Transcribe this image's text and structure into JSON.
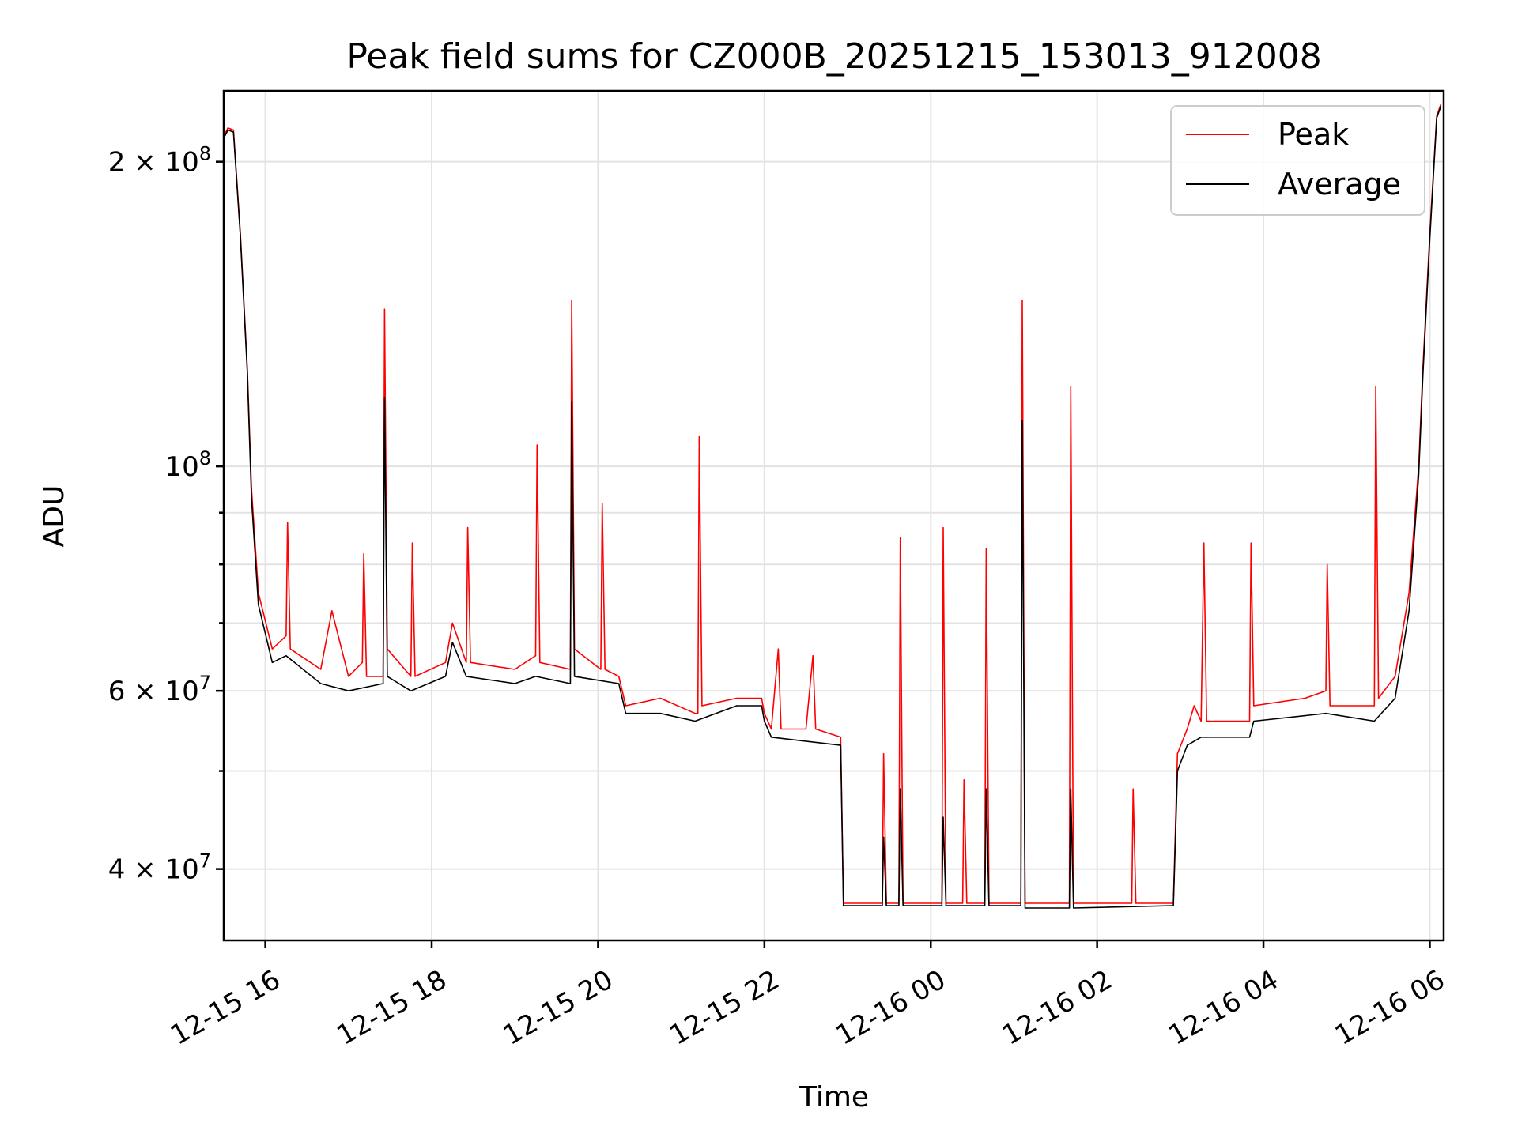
{
  "chart_data": {
    "type": "line",
    "title": "Peak field sums for CZ000B_20251215_153013_912008",
    "xlabel": "Time",
    "ylabel": "ADU",
    "yscale": "log",
    "ylim": [
      34000000,
      235000000
    ],
    "xlim": [
      "2025-12-15 15:30",
      "2025-12-16 06:10"
    ],
    "grid": true,
    "legend_position": "top-right",
    "x_ticks": [
      {
        "t": "2025-12-15 16:00",
        "label": "12-15 16"
      },
      {
        "t": "2025-12-15 18:00",
        "label": "12-15 18"
      },
      {
        "t": "2025-12-15 20:00",
        "label": "12-15 20"
      },
      {
        "t": "2025-12-15 22:00",
        "label": "12-15 22"
      },
      {
        "t": "2025-12-16 00:00",
        "label": "12-16 00"
      },
      {
        "t": "2025-12-16 02:00",
        "label": "12-16 02"
      },
      {
        "t": "2025-12-16 04:00",
        "label": "12-16 04"
      },
      {
        "t": "2025-12-16 06:00",
        "label": "12-16 06"
      }
    ],
    "y_ticks": [
      {
        "v": 40000000,
        "mant": "4",
        "exp": "7"
      },
      {
        "v": 60000000,
        "mant": "6",
        "exp": "7"
      },
      {
        "v": 100000000,
        "mant": "",
        "exp": "8"
      },
      {
        "v": 200000000,
        "mant": "2",
        "exp": "8"
      }
    ],
    "y_minor_grid": [
      50000000,
      70000000,
      80000000,
      90000000
    ],
    "series": [
      {
        "name": "Peak",
        "color": "#ff0000",
        "points": [
          [
            "2025-12-15 15:30",
            212000000
          ],
          [
            "2025-12-15 15:33",
            216000000
          ],
          [
            "2025-12-15 15:37",
            215000000
          ],
          [
            "2025-12-15 15:42",
            170000000
          ],
          [
            "2025-12-15 15:47",
            125000000
          ],
          [
            "2025-12-15 15:50",
            95000000
          ],
          [
            "2025-12-15 15:55",
            75000000
          ],
          [
            "2025-12-15 16:05",
            66000000
          ],
          [
            "2025-12-15 16:15",
            68000000
          ],
          [
            "2025-12-15 16:16",
            88000000
          ],
          [
            "2025-12-15 16:18",
            66000000
          ],
          [
            "2025-12-15 16:40",
            63000000
          ],
          [
            "2025-12-15 16:48",
            72000000
          ],
          [
            "2025-12-15 17:00",
            62000000
          ],
          [
            "2025-12-15 17:10",
            64000000
          ],
          [
            "2025-12-15 17:11",
            82000000
          ],
          [
            "2025-12-15 17:13",
            62000000
          ],
          [
            "2025-12-15 17:25",
            62000000
          ],
          [
            "2025-12-15 17:26",
            143000000
          ],
          [
            "2025-12-15 17:28",
            66000000
          ],
          [
            "2025-12-15 17:45",
            62000000
          ],
          [
            "2025-12-15 17:46",
            84000000
          ],
          [
            "2025-12-15 17:48",
            62000000
          ],
          [
            "2025-12-15 18:10",
            64000000
          ],
          [
            "2025-12-15 18:15",
            70000000
          ],
          [
            "2025-12-15 18:25",
            64000000
          ],
          [
            "2025-12-15 18:26",
            87000000
          ],
          [
            "2025-12-15 18:28",
            64000000
          ],
          [
            "2025-12-15 19:00",
            63000000
          ],
          [
            "2025-12-15 19:15",
            65000000
          ],
          [
            "2025-12-15 19:16",
            105000000
          ],
          [
            "2025-12-15 19:18",
            64000000
          ],
          [
            "2025-12-15 19:40",
            63000000
          ],
          [
            "2025-12-15 19:41",
            146000000
          ],
          [
            "2025-12-15 19:43",
            66000000
          ],
          [
            "2025-12-15 20:02",
            63000000
          ],
          [
            "2025-12-15 20:03",
            92000000
          ],
          [
            "2025-12-15 20:05",
            63000000
          ],
          [
            "2025-12-15 20:15",
            62000000
          ],
          [
            "2025-12-15 20:20",
            58000000
          ],
          [
            "2025-12-15 20:45",
            59000000
          ],
          [
            "2025-12-15 21:10",
            57000000
          ],
          [
            "2025-12-15 21:12",
            57000000
          ],
          [
            "2025-12-15 21:13",
            107000000
          ],
          [
            "2025-12-15 21:15",
            58000000
          ],
          [
            "2025-12-15 21:40",
            59000000
          ],
          [
            "2025-12-15 21:58",
            59000000
          ],
          [
            "2025-12-15 22:00",
            57000000
          ],
          [
            "2025-12-15 22:05",
            55000000
          ],
          [
            "2025-12-15 22:10",
            66000000
          ],
          [
            "2025-12-15 22:12",
            55000000
          ],
          [
            "2025-12-15 22:30",
            55000000
          ],
          [
            "2025-12-15 22:35",
            65000000
          ],
          [
            "2025-12-15 22:37",
            55000000
          ],
          [
            "2025-12-15 22:55",
            54000000
          ],
          [
            "2025-12-15 22:57",
            37000000
          ],
          [
            "2025-12-15 23:25",
            37000000
          ],
          [
            "2025-12-15 23:26",
            52000000
          ],
          [
            "2025-12-15 23:28",
            37000000
          ],
          [
            "2025-12-15 23:37",
            37000000
          ],
          [
            "2025-12-15 23:38",
            85000000
          ],
          [
            "2025-12-15 23:40",
            37000000
          ],
          [
            "2025-12-16 00:08",
            37000000
          ],
          [
            "2025-12-16 00:09",
            87000000
          ],
          [
            "2025-12-16 00:11",
            37000000
          ],
          [
            "2025-12-16 00:23",
            37000000
          ],
          [
            "2025-12-16 00:24",
            49000000
          ],
          [
            "2025-12-16 00:26",
            37000000
          ],
          [
            "2025-12-16 00:39",
            37000000
          ],
          [
            "2025-12-16 00:40",
            83000000
          ],
          [
            "2025-12-16 00:42",
            37000000
          ],
          [
            "2025-12-16 01:05",
            37000000
          ],
          [
            "2025-12-16 01:06",
            146000000
          ],
          [
            "2025-12-16 01:08",
            37000000
          ],
          [
            "2025-12-16 01:40",
            37000000
          ],
          [
            "2025-12-16 01:41",
            120000000
          ],
          [
            "2025-12-16 01:43",
            37000000
          ],
          [
            "2025-12-16 02:25",
            37000000
          ],
          [
            "2025-12-16 02:26",
            48000000
          ],
          [
            "2025-12-16 02:28",
            37000000
          ],
          [
            "2025-12-16 02:55",
            37000000
          ],
          [
            "2025-12-16 02:58",
            52000000
          ],
          [
            "2025-12-16 03:05",
            55000000
          ],
          [
            "2025-12-16 03:10",
            58000000
          ],
          [
            "2025-12-16 03:15",
            56000000
          ],
          [
            "2025-12-16 03:17",
            84000000
          ],
          [
            "2025-12-16 03:19",
            56000000
          ],
          [
            "2025-12-16 03:50",
            56000000
          ],
          [
            "2025-12-16 03:51",
            84000000
          ],
          [
            "2025-12-16 03:53",
            58000000
          ],
          [
            "2025-12-16 04:30",
            59000000
          ],
          [
            "2025-12-16 04:45",
            60000000
          ],
          [
            "2025-12-16 04:46",
            80000000
          ],
          [
            "2025-12-16 04:48",
            58000000
          ],
          [
            "2025-12-16 05:20",
            58000000
          ],
          [
            "2025-12-16 05:21",
            120000000
          ],
          [
            "2025-12-16 05:23",
            59000000
          ],
          [
            "2025-12-16 05:35",
            62000000
          ],
          [
            "2025-12-16 05:45",
            75000000
          ],
          [
            "2025-12-16 05:52",
            100000000
          ],
          [
            "2025-12-16 05:55",
            125000000
          ],
          [
            "2025-12-16 06:00",
            170000000
          ],
          [
            "2025-12-16 06:05",
            222000000
          ],
          [
            "2025-12-16 06:08",
            228000000
          ]
        ]
      },
      {
        "name": "Average",
        "color": "#000000",
        "points": [
          [
            "2025-12-15 15:30",
            211000000
          ],
          [
            "2025-12-15 15:33",
            215000000
          ],
          [
            "2025-12-15 15:37",
            214000000
          ],
          [
            "2025-12-15 15:42",
            169000000
          ],
          [
            "2025-12-15 15:47",
            124000000
          ],
          [
            "2025-12-15 15:50",
            93000000
          ],
          [
            "2025-12-15 15:55",
            73000000
          ],
          [
            "2025-12-15 16:05",
            64000000
          ],
          [
            "2025-12-15 16:15",
            65000000
          ],
          [
            "2025-12-15 16:40",
            61000000
          ],
          [
            "2025-12-15 17:00",
            60000000
          ],
          [
            "2025-12-15 17:25",
            61000000
          ],
          [
            "2025-12-15 17:26",
            117000000
          ],
          [
            "2025-12-15 17:28",
            62000000
          ],
          [
            "2025-12-15 17:45",
            60000000
          ],
          [
            "2025-12-15 18:10",
            62000000
          ],
          [
            "2025-12-15 18:15",
            67000000
          ],
          [
            "2025-12-15 18:25",
            62000000
          ],
          [
            "2025-12-15 19:00",
            61000000
          ],
          [
            "2025-12-15 19:15",
            62000000
          ],
          [
            "2025-12-15 19:40",
            61000000
          ],
          [
            "2025-12-15 19:41",
            116000000
          ],
          [
            "2025-12-15 19:43",
            62000000
          ],
          [
            "2025-12-15 20:15",
            61000000
          ],
          [
            "2025-12-15 20:20",
            57000000
          ],
          [
            "2025-12-15 20:45",
            57000000
          ],
          [
            "2025-12-15 21:10",
            56000000
          ],
          [
            "2025-12-15 21:40",
            58000000
          ],
          [
            "2025-12-15 21:58",
            58000000
          ],
          [
            "2025-12-15 22:00",
            56000000
          ],
          [
            "2025-12-15 22:05",
            54000000
          ],
          [
            "2025-12-15 22:55",
            53000000
          ],
          [
            "2025-12-15 22:57",
            36800000
          ],
          [
            "2025-12-15 23:25",
            36800000
          ],
          [
            "2025-12-15 23:26",
            43000000
          ],
          [
            "2025-12-15 23:28",
            36800000
          ],
          [
            "2025-12-15 23:37",
            36800000
          ],
          [
            "2025-12-15 23:38",
            48000000
          ],
          [
            "2025-12-15 23:40",
            36800000
          ],
          [
            "2025-12-16 00:08",
            36800000
          ],
          [
            "2025-12-16 00:09",
            45000000
          ],
          [
            "2025-12-16 00:11",
            36800000
          ],
          [
            "2025-12-16 00:39",
            36800000
          ],
          [
            "2025-12-16 00:40",
            48000000
          ],
          [
            "2025-12-16 00:42",
            36800000
          ],
          [
            "2025-12-16 01:05",
            36800000
          ],
          [
            "2025-12-16 01:06",
            111000000
          ],
          [
            "2025-12-16 01:08",
            36600000
          ],
          [
            "2025-12-16 01:40",
            36600000
          ],
          [
            "2025-12-16 01:41",
            48000000
          ],
          [
            "2025-12-16 01:43",
            36600000
          ],
          [
            "2025-12-16 02:55",
            36800000
          ],
          [
            "2025-12-16 02:58",
            50000000
          ],
          [
            "2025-12-16 03:05",
            53000000
          ],
          [
            "2025-12-16 03:15",
            54000000
          ],
          [
            "2025-12-16 03:50",
            54000000
          ],
          [
            "2025-12-16 03:53",
            56000000
          ],
          [
            "2025-12-16 04:45",
            57000000
          ],
          [
            "2025-12-16 05:20",
            56000000
          ],
          [
            "2025-12-16 05:35",
            59000000
          ],
          [
            "2025-12-16 05:45",
            72000000
          ],
          [
            "2025-12-16 05:52",
            98000000
          ],
          [
            "2025-12-16 05:55",
            123000000
          ],
          [
            "2025-12-16 06:00",
            168000000
          ],
          [
            "2025-12-16 06:05",
            221000000
          ],
          [
            "2025-12-16 06:08",
            227000000
          ]
        ]
      }
    ]
  }
}
